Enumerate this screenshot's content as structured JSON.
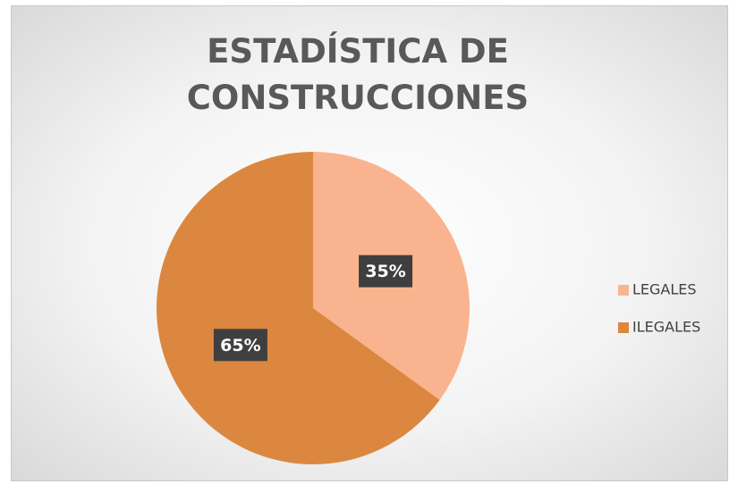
{
  "chart_data": {
    "type": "pie",
    "title": "ESTADÍSTICA DE CONSTRUCCIONES",
    "categories": [
      "LEGALES",
      "ILEGALES"
    ],
    "values": [
      35,
      65
    ],
    "value_labels": [
      "35%",
      "65%"
    ],
    "colors": [
      "#f9b48f",
      "#dc8740"
    ],
    "legend": "right"
  }
}
